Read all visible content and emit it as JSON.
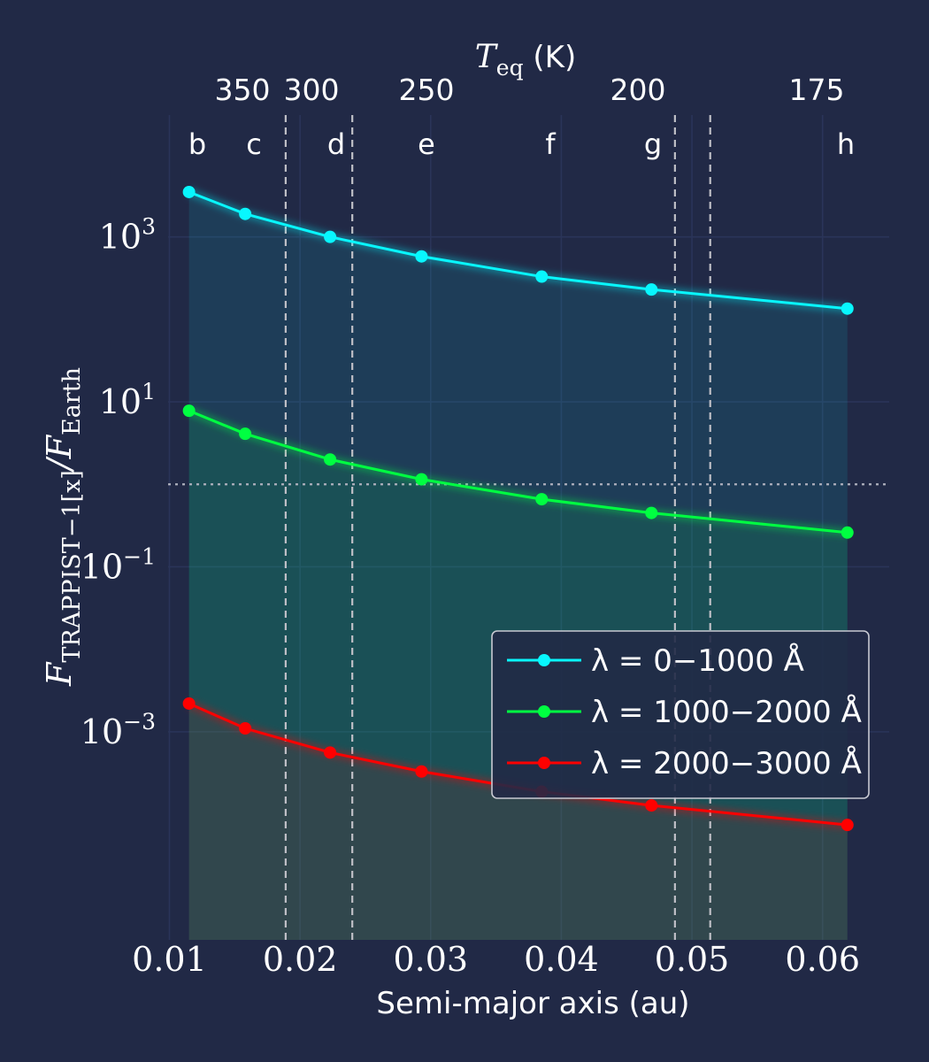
{
  "chart_data": {
    "type": "line",
    "x_axis": {
      "label": "Semi-major axis (au)",
      "range": [
        0.0099,
        0.0651
      ],
      "ticks": [
        0.01,
        0.02,
        0.03,
        0.04,
        0.05,
        0.06
      ],
      "tick_labels": [
        "0.01",
        "0.02",
        "0.03",
        "0.04",
        "0.05",
        "0.06"
      ]
    },
    "y_axis": {
      "label_main": "F",
      "label_sub": "TRAPPIST−1[x]",
      "label_sep": "/F",
      "label_sub2": "Earth",
      "scale": "log",
      "range": [
        3e-06,
        30000
      ],
      "ticks": [
        1000,
        10,
        0.1,
        0.001
      ],
      "tick_bases": [
        "10",
        "10",
        "10",
        "10"
      ],
      "tick_exps": [
        "3",
        "1",
        "−1",
        "−3"
      ]
    },
    "top_axis": {
      "label_main": "T",
      "label_sub": "eq",
      "label_unit": "(K)",
      "tick_labels": [
        "350",
        "300",
        "250",
        "200",
        "175"
      ]
    },
    "planets": {
      "names": [
        "b",
        "c",
        "d",
        "e",
        "f",
        "g",
        "h"
      ],
      "x": [
        0.0115,
        0.0158,
        0.0223,
        0.0293,
        0.0385,
        0.0469,
        0.0619
      ]
    },
    "series": [
      {
        "name": "λ = 0−1000 Å",
        "color": "#08F7FE",
        "x": [
          0.0115,
          0.0158,
          0.0223,
          0.0293,
          0.0385,
          0.0469,
          0.0619
        ],
        "y": [
          3500,
          1900,
          1000,
          580,
          330,
          230,
          135
        ]
      },
      {
        "name": "λ = 1000−2000 Å",
        "color": "#00FF41",
        "x": [
          0.0115,
          0.0158,
          0.0223,
          0.0293,
          0.0385,
          0.0469,
          0.0619
        ],
        "y": [
          7.8,
          4.1,
          2.0,
          1.15,
          0.66,
          0.45,
          0.26
        ]
      },
      {
        "name": "λ = 2000−3000 Å",
        "color": "#FF0000",
        "x": [
          0.0115,
          0.0158,
          0.0223,
          0.0293,
          0.0385,
          0.0469,
          0.0619
        ],
        "y": [
          0.0022,
          0.0011,
          0.00056,
          0.00033,
          0.000188,
          0.000128,
          7.42e-05
        ]
      }
    ],
    "reference_line_y": 1,
    "vertical_dashed_lines_x": [
      0.0189,
      0.024,
      0.0487,
      0.0514
    ],
    "legend_position": "center-right",
    "grid": true
  }
}
